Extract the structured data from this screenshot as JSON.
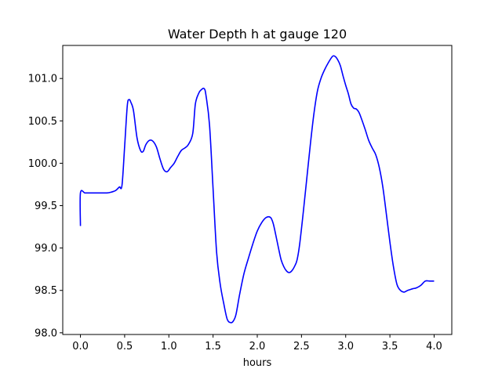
{
  "chart_data": {
    "type": "line",
    "title": "Water Depth h at gauge 120",
    "xlabel": "hours",
    "ylabel": "",
    "xlim": [
      -0.2,
      4.2
    ],
    "ylim": [
      97.98,
      101.39
    ],
    "xticks": [
      0.0,
      0.5,
      1.0,
      1.5,
      2.0,
      2.5,
      3.0,
      3.5,
      4.0
    ],
    "xtick_labels": [
      "0.0",
      "0.5",
      "1.0",
      "1.5",
      "2.0",
      "2.5",
      "3.0",
      "3.5",
      "4.0"
    ],
    "yticks": [
      98.0,
      98.5,
      99.0,
      99.5,
      100.0,
      100.5,
      101.0
    ],
    "ytick_labels": [
      "98.0",
      "98.5",
      "99.0",
      "99.5",
      "100.0",
      "100.5",
      "101.0"
    ],
    "grid": false,
    "series": [
      {
        "color": "#0000ff",
        "x": [
          0.0,
          0.0,
          0.05,
          0.1,
          0.2,
          0.3,
          0.35,
          0.4,
          0.44,
          0.47,
          0.5,
          0.53,
          0.55,
          0.57,
          0.6,
          0.64,
          0.68,
          0.71,
          0.74,
          0.78,
          0.82,
          0.86,
          0.9,
          0.94,
          0.98,
          1.02,
          1.06,
          1.1,
          1.14,
          1.18,
          1.22,
          1.27,
          1.3,
          1.34,
          1.37,
          1.4,
          1.42,
          1.46,
          1.5,
          1.54,
          1.58,
          1.62,
          1.66,
          1.7,
          1.73,
          1.76,
          1.8,
          1.85,
          1.9,
          1.95,
          2.0,
          2.05,
          2.1,
          2.15,
          2.18,
          2.21,
          2.24,
          2.27,
          2.3,
          2.33,
          2.36,
          2.39,
          2.42,
          2.45,
          2.48,
          2.52,
          2.56,
          2.6,
          2.64,
          2.68,
          2.72,
          2.76,
          2.8,
          2.85,
          2.88,
          2.91,
          2.94,
          2.97,
          3.0,
          3.03,
          3.06,
          3.09,
          3.12,
          3.15,
          3.18,
          3.22,
          3.26,
          3.3,
          3.34,
          3.38,
          3.42,
          3.46,
          3.5,
          3.54,
          3.58,
          3.62,
          3.66,
          3.7,
          3.73,
          3.76,
          3.8,
          3.85,
          3.9,
          3.95,
          4.0
        ],
        "y": [
          99.26,
          99.65,
          99.65,
          99.65,
          99.65,
          99.65,
          99.66,
          99.68,
          99.72,
          99.74,
          100.2,
          100.68,
          100.75,
          100.72,
          100.62,
          100.3,
          100.15,
          100.14,
          100.22,
          100.27,
          100.26,
          100.19,
          100.05,
          99.93,
          99.9,
          99.95,
          100.0,
          100.08,
          100.15,
          100.18,
          100.22,
          100.35,
          100.7,
          100.83,
          100.87,
          100.88,
          100.8,
          100.45,
          99.7,
          98.95,
          98.58,
          98.35,
          98.16,
          98.12,
          98.14,
          98.22,
          98.45,
          98.7,
          98.88,
          99.05,
          99.2,
          99.3,
          99.36,
          99.36,
          99.29,
          99.15,
          99.0,
          98.86,
          98.78,
          98.73,
          98.71,
          98.73,
          98.78,
          98.86,
          99.05,
          99.42,
          99.82,
          100.22,
          100.58,
          100.85,
          101.0,
          101.1,
          101.18,
          101.26,
          101.26,
          101.22,
          101.15,
          101.03,
          100.92,
          100.82,
          100.7,
          100.65,
          100.64,
          100.6,
          100.52,
          100.4,
          100.27,
          100.18,
          100.1,
          99.95,
          99.72,
          99.4,
          99.07,
          98.78,
          98.57,
          98.5,
          98.48,
          98.5,
          98.51,
          98.52,
          98.53,
          98.56,
          98.61,
          98.61,
          98.61
        ]
      }
    ]
  }
}
